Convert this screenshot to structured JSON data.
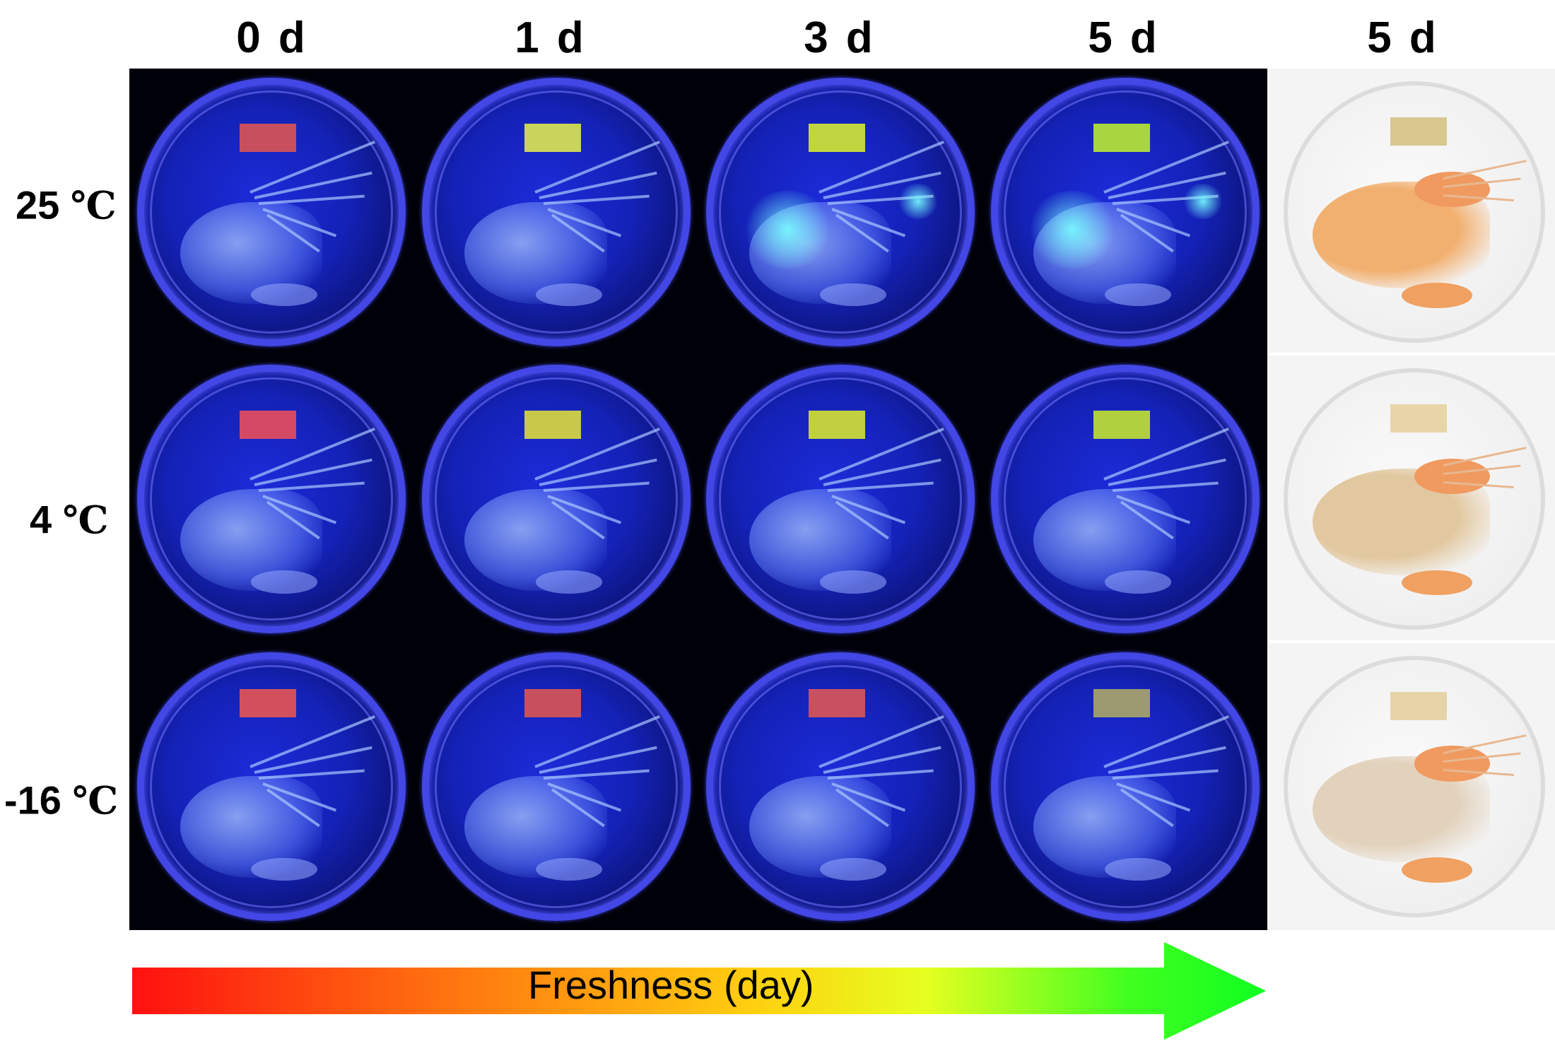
{
  "columns": [
    {
      "label": "0 d"
    },
    {
      "label": "1 d"
    },
    {
      "label": "3 d"
    },
    {
      "label": "5 d"
    },
    {
      "label": "5 d"
    }
  ],
  "rows": [
    {
      "label_value": "25",
      "label_unit": "℃"
    },
    {
      "label_value": "4",
      "label_unit": "℃"
    },
    {
      "label_value": "-16",
      "label_unit": "℃"
    }
  ],
  "indicator_colors": [
    [
      "#c8505e",
      "#c8d45a",
      "#c0d640",
      "#a8d640"
    ],
    [
      "#d44a66",
      "#c8c84a",
      "#c0d040",
      "#b0d040"
    ],
    [
      "#d2505e",
      "#c8505e",
      "#c85060",
      "#9c9a70"
    ]
  ],
  "photo_indicator_colors": [
    "#d8c890",
    "#e8d6a8",
    "#e6d4a8"
  ],
  "photo_shrimp_colors": [
    "#f2b070",
    "#e2c8a0",
    "#e2d2bc"
  ],
  "arrow": {
    "label": "Freshness (day)",
    "gradient": [
      "#ff1010",
      "#ff6a10",
      "#ffd010",
      "#e6ff20",
      "#40ff20",
      "#10ff20"
    ]
  }
}
